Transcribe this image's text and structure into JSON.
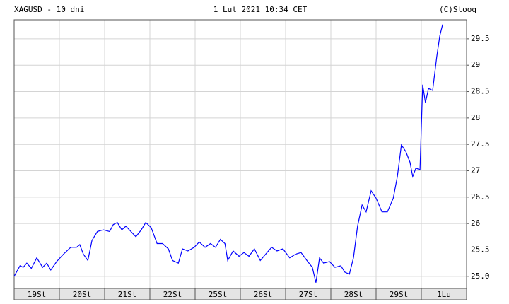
{
  "chart_data": {
    "type": "line",
    "header_left": "XAGUSD - 10 dni",
    "header_center": "1 Lut 2021 10:34 CET",
    "header_right": "(C)Stooq",
    "categories": [
      "19St",
      "20St",
      "21St",
      "22St",
      "25St",
      "26St",
      "27St",
      "28St",
      "29St",
      "1Lu"
    ],
    "xlim": [
      0,
      10
    ],
    "xticks": [
      1,
      2,
      3,
      4,
      5,
      6,
      7,
      8,
      9
    ],
    "ylim": [
      24.77,
      29.86
    ],
    "yticks": [
      {
        "value": 25,
        "label": "25.0"
      },
      25.5,
      26,
      26.5,
      27,
      27.5,
      28,
      28.5,
      29,
      29.5
    ],
    "grid": true,
    "series": [
      {
        "color": "#0000ff",
        "x": [
          0,
          0.13,
          0.2,
          0.28,
          0.38,
          0.5,
          0.63,
          0.72,
          0.81,
          0.94,
          1.09,
          1.25,
          1.38,
          1.45,
          1.53,
          1.63,
          1.72,
          1.84,
          1.97,
          2.11,
          2.19,
          2.28,
          2.38,
          2.47,
          2.58,
          2.69,
          2.81,
          2.91,
          3.03,
          3.16,
          3.28,
          3.41,
          3.5,
          3.63,
          3.72,
          3.84,
          3.98,
          4.09,
          4.22,
          4.34,
          4.45,
          4.56,
          4.66,
          4.72,
          4.84,
          4.97,
          5.08,
          5.19,
          5.31,
          5.44,
          5.56,
          5.69,
          5.81,
          5.94,
          6.09,
          6.22,
          6.34,
          6.47,
          6.59,
          6.67,
          6.75,
          6.84,
          6.97,
          7.09,
          7.22,
          7.31,
          7.41,
          7.5,
          7.59,
          7.69,
          7.78,
          7.89,
          8.0,
          8.13,
          8.25,
          8.38,
          8.47,
          8.56,
          8.66,
          8.75,
          8.81,
          8.88,
          8.97,
          9.03,
          9.09,
          9.16,
          9.25,
          9.34,
          9.41,
          9.47
        ],
        "values": [
          25.0,
          25.2,
          25.17,
          25.25,
          25.15,
          25.35,
          25.17,
          25.25,
          25.12,
          25.28,
          25.42,
          25.55,
          25.55,
          25.6,
          25.42,
          25.3,
          25.68,
          25.85,
          25.88,
          25.85,
          25.98,
          26.02,
          25.88,
          25.95,
          25.85,
          25.75,
          25.88,
          26.02,
          25.92,
          25.62,
          25.62,
          25.52,
          25.3,
          25.25,
          25.52,
          25.48,
          25.55,
          25.65,
          25.55,
          25.62,
          25.55,
          25.7,
          25.62,
          25.3,
          25.48,
          25.38,
          25.45,
          25.38,
          25.52,
          25.3,
          25.42,
          25.55,
          25.48,
          25.52,
          25.35,
          25.42,
          25.45,
          25.3,
          25.17,
          24.88,
          25.35,
          25.25,
          25.28,
          25.17,
          25.2,
          25.08,
          25.04,
          25.35,
          25.95,
          26.35,
          26.22,
          26.62,
          26.48,
          26.22,
          26.22,
          26.48,
          26.89,
          27.49,
          27.36,
          27.16,
          26.89,
          27.05,
          27.02,
          28.63,
          28.29,
          28.56,
          28.52,
          29.16,
          29.56,
          29.77
        ]
      }
    ]
  }
}
